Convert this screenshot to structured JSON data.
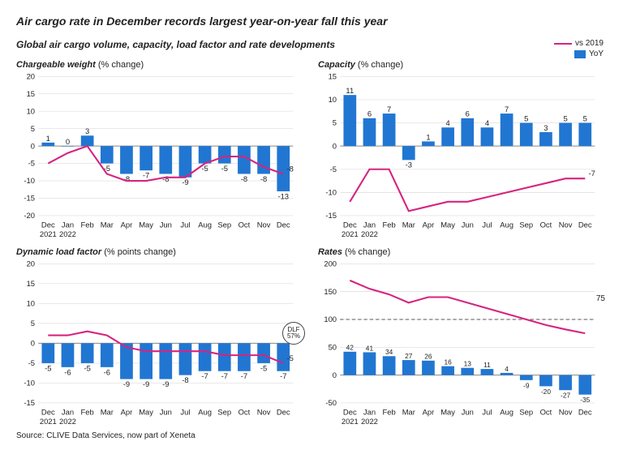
{
  "title": "Air cargo rate in December records largest year-on-year fall this year",
  "subtitle": "Global air cargo volume, capacity, load factor and rate developments",
  "legend": {
    "line_label": "vs 2019",
    "line_color": "#d6247f",
    "bar_label": "YoY",
    "bar_color": "#2176d2"
  },
  "categories": [
    "Dec",
    "Jan",
    "Feb",
    "Mar",
    "Apr",
    "May",
    "Jun",
    "Jul",
    "Aug",
    "Sep",
    "Oct",
    "Nov",
    "Dec"
  ],
  "year_labels": [
    "2021",
    "2022"
  ],
  "panels": {
    "chargeable_weight": {
      "title_bold": "Chargeable weight",
      "title_rest": " (% change)",
      "ylim": [
        -20,
        20
      ],
      "ytick_step": 5,
      "bars": [
        1,
        0,
        3,
        -5,
        -8,
        -7,
        -8,
        -9,
        -5,
        -5,
        -8,
        -8,
        -13
      ],
      "line": [
        -5,
        -2,
        0,
        -8,
        -10,
        -10,
        -9,
        -9,
        -5,
        -3,
        -3,
        -6,
        -8
      ],
      "line_end_label": "-8",
      "bar_color": "#2176d2",
      "line_color": "#d6247f",
      "grid_color": "#dcdcdc",
      "text_color": "#222222",
      "fontsize_axis": 9,
      "fontsize_datalabel": 9
    },
    "capacity": {
      "title_bold": "Capacity",
      "title_rest": " (% change)",
      "ylim": [
        -15,
        15
      ],
      "ytick_step": 5,
      "bars": [
        11,
        6,
        7,
        -3,
        1,
        4,
        6,
        4,
        7,
        5,
        3,
        5,
        5
      ],
      "line": [
        -12,
        -5,
        -5,
        -14,
        -13,
        -12,
        -12,
        -11,
        -10,
        -9,
        -8,
        -7,
        -7
      ],
      "line_end_label": "-7",
      "bar_color": "#2176d2",
      "line_color": "#d6247f",
      "grid_color": "#dcdcdc",
      "text_color": "#222222",
      "fontsize_axis": 9,
      "fontsize_datalabel": 9
    },
    "dynamic_load_factor": {
      "title_bold": "Dynamic load factor",
      "title_rest": " (% points change)",
      "ylim": [
        -15,
        20
      ],
      "ytick_step": 5,
      "bars": [
        -5,
        -6,
        -5,
        -6,
        -9,
        -9,
        -9,
        -8,
        -7,
        -7,
        -7,
        -5,
        -7
      ],
      "line": [
        2,
        2,
        3,
        2,
        -1,
        -2,
        -2,
        -2,
        -2,
        -3,
        -3,
        -3,
        -5
      ],
      "line_end_label": "-5",
      "bar_color": "#2176d2",
      "line_color": "#d6247f",
      "grid_color": "#dcdcdc",
      "text_color": "#222222",
      "fontsize_axis": 9,
      "fontsize_datalabel": 9,
      "badge": {
        "line1": "DLF",
        "line2": "57%"
      }
    },
    "rates": {
      "title_bold": "Rates",
      "title_rest": " (% change)",
      "ylim": [
        -50,
        200
      ],
      "ytick_step": 50,
      "bars": [
        42,
        41,
        34,
        27,
        26,
        16,
        13,
        11,
        4,
        -9,
        -20,
        -27,
        -35
      ],
      "line": [
        170,
        155,
        145,
        130,
        140,
        140,
        130,
        120,
        110,
        100,
        90,
        82,
        75
      ],
      "line_end_label": "75",
      "dashed_ref": 100,
      "bar_color": "#2176d2",
      "line_color": "#d6247f",
      "grid_color": "#dcdcdc",
      "dashed_color": "#555555",
      "text_color": "#222222",
      "fontsize_axis": 9,
      "fontsize_datalabel": 8
    }
  },
  "source": "Source: CLIVE Data Services, now part of Xeneta"
}
